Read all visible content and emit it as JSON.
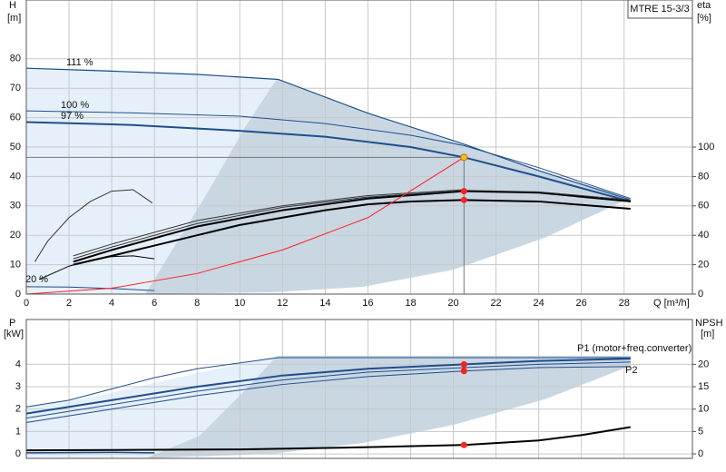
{
  "chart_data": [
    {
      "type": "line",
      "title": "MTRE 15-3/3",
      "ylabel": "H",
      "yunit": "[m]",
      "y2label": "eta",
      "y2unit": "[%]",
      "xlabel": "Q [m³/h]",
      "xlim": [
        0,
        31.2
      ],
      "xticks": [
        0,
        2,
        4,
        6,
        8,
        10,
        12,
        14,
        16,
        18,
        20,
        22,
        24,
        26,
        28
      ],
      "ylim": [
        0,
        100
      ],
      "yticks": [
        0,
        10,
        20,
        30,
        40,
        50,
        60,
        70,
        80
      ],
      "y2lim": [
        0,
        200
      ],
      "y2ticks": [
        0,
        20,
        40,
        60,
        80,
        100
      ],
      "grid": true,
      "series": [
        {
          "name": "111 %",
          "color": "#1f4e8c",
          "width": 1.2,
          "x": [
            0,
            4,
            8,
            11.8,
            16,
            20.5,
            24,
            28.3
          ],
          "values": [
            76.8,
            75.8,
            74.7,
            73,
            61.5,
            51,
            42,
            32
          ]
        },
        {
          "name": "100 %",
          "color": "#1f4e8c",
          "width": 1,
          "x": [
            0,
            5,
            10,
            14,
            18,
            20.5,
            24,
            28.3
          ],
          "values": [
            62.3,
            61.6,
            60.5,
            58,
            54,
            50.5,
            43,
            32.5
          ]
        },
        {
          "name": "97 %",
          "color": "#1f4e8c",
          "width": 2,
          "x": [
            0,
            5,
            10,
            14,
            18,
            20.5,
            24,
            28.3
          ],
          "values": [
            58.5,
            57.5,
            55.5,
            53.5,
            50,
            46.5,
            40,
            31.5
          ]
        },
        {
          "name": "20 %",
          "color": "#1f4e8c",
          "width": 1,
          "x": [
            0,
            2,
            4,
            6
          ],
          "values": [
            2.5,
            2.4,
            1.9,
            1.2
          ]
        },
        {
          "color": "#000000",
          "width": 2,
          "axis": "y2",
          "x": [
            2.2,
            4,
            6,
            8,
            10,
            12,
            14,
            16,
            18,
            20.5,
            24,
            28.3
          ],
          "values": [
            20,
            26,
            33,
            40,
            47,
            52,
            57,
            61,
            63,
            64,
            63,
            58
          ]
        },
        {
          "color": "#000000",
          "width": 2,
          "axis": "y2",
          "x": [
            2.2,
            4,
            8,
            12,
            16,
            20.5,
            24,
            28.3
          ],
          "values": [
            22,
            30,
            46,
            57,
            65,
            70,
            69,
            63
          ]
        },
        {
          "color": "#333333",
          "width": 1,
          "axis": "y2",
          "x": [
            2.2,
            4,
            8,
            12,
            16,
            20.5,
            24,
            28.3
          ],
          "values": [
            24,
            32,
            48,
            59,
            66,
            70.5,
            69.5,
            64
          ]
        },
        {
          "color": "#333333",
          "width": 1,
          "axis": "y2",
          "x": [
            2.2,
            4,
            8,
            12,
            16,
            20.5
          ],
          "values": [
            26,
            34,
            50,
            60,
            67,
            71
          ]
        },
        {
          "color": "#333333",
          "width": 1,
          "axis": "y2",
          "x": [
            0.4,
            1,
            2,
            3,
            4,
            5,
            5.9
          ],
          "values": [
            22,
            36,
            52,
            63,
            70,
            71,
            62
          ]
        },
        {
          "color": "#000000",
          "width": 1,
          "axis": "y2",
          "x": [
            0.6,
            2,
            3,
            4,
            5,
            6
          ],
          "values": [
            10,
            19,
            23,
            25.5,
            26,
            24
          ]
        },
        {
          "color": "#ff2020",
          "width": 1,
          "x": [
            0,
            4,
            8,
            12,
            16,
            20.5
          ],
          "values": [
            0,
            2,
            7,
            15,
            26,
            46.5
          ]
        }
      ],
      "markers": [
        {
          "x": 20.5,
          "y": 46.5,
          "color": "#f5c400"
        },
        {
          "x": 20.5,
          "y": 70,
          "color": "#ff2020",
          "axis": "y2"
        },
        {
          "x": 20.5,
          "y": 64,
          "color": "#ff2020",
          "axis": "y2"
        }
      ]
    },
    {
      "type": "line",
      "ylabel": "P",
      "yunit": "[kW]",
      "y2label": "NPSH",
      "y2unit": "[m]",
      "xlim": [
        0,
        31.2
      ],
      "ylim": [
        -0.2,
        6
      ],
      "yticks": [
        0,
        1,
        2,
        3,
        4
      ],
      "y2lim": [
        -1,
        30
      ],
      "y2ticks": [
        0,
        5,
        10,
        15,
        20
      ],
      "grid": true,
      "series": [
        {
          "color": "#1f4e8c",
          "width": 1,
          "x": [
            0,
            2,
            4,
            6,
            8,
            11.8,
            28.3
          ],
          "values": [
            2.1,
            2.4,
            2.9,
            3.4,
            3.8,
            4.3,
            4.3
          ]
        },
        {
          "name": "P1 (motor+freq.converter)",
          "color": "#1f4e8c",
          "width": 2,
          "x": [
            0,
            4,
            8,
            12,
            16,
            20.5,
            24,
            28.3
          ],
          "values": [
            1.8,
            2.4,
            3.0,
            3.5,
            3.8,
            4.0,
            4.15,
            4.25
          ]
        },
        {
          "color": "#1f4e8c",
          "width": 1,
          "x": [
            0,
            4,
            8,
            12,
            16,
            20.5,
            24,
            28.3
          ],
          "values": [
            1.6,
            2.2,
            2.8,
            3.3,
            3.65,
            3.85,
            4.0,
            4.1
          ]
        },
        {
          "name": "P2",
          "color": "#1f4e8c",
          "width": 1,
          "x": [
            0,
            4,
            8,
            12,
            16,
            20.5,
            24,
            28.3
          ],
          "values": [
            1.4,
            2.0,
            2.6,
            3.1,
            3.45,
            3.7,
            3.85,
            3.9
          ]
        },
        {
          "color": "#1f4e8c",
          "width": 1.5,
          "x": [
            0,
            2,
            4,
            6
          ],
          "values": [
            0.05,
            0.06,
            0.07,
            0.05
          ]
        },
        {
          "color": "#000000",
          "width": 2,
          "axis": "y2",
          "x": [
            0,
            5,
            10,
            16,
            20.5,
            24,
            26,
            28.3
          ],
          "values": [
            0.8,
            0.9,
            1,
            1.5,
            2,
            3,
            4.2,
            6
          ]
        }
      ],
      "markers": [
        {
          "x": 20.5,
          "y": 4.0,
          "color": "#ff2020"
        },
        {
          "x": 20.5,
          "y": 3.7,
          "color": "#ff2020"
        },
        {
          "x": 20.5,
          "y": 2,
          "color": "#ff2020",
          "axis": "y2"
        }
      ]
    }
  ]
}
